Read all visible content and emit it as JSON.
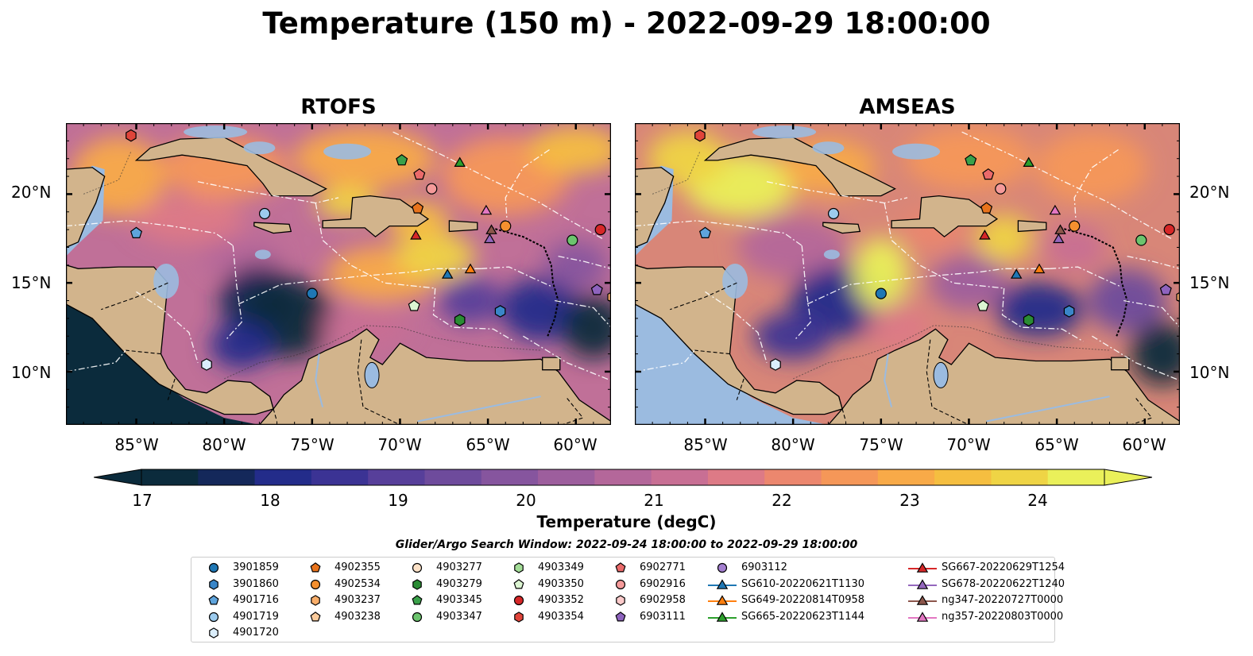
{
  "title": "Temperature (150 m) - 2022-09-29 18:00:00",
  "panels": [
    {
      "title": "RTOFS"
    },
    {
      "title": "AMSEAS"
    }
  ],
  "lat_labels": [
    "20°N",
    "15°N",
    "10°N"
  ],
  "lon_labels": [
    "85°W",
    "80°W",
    "75°W",
    "70°W",
    "65°W",
    "60°W"
  ],
  "colorbar": {
    "label": "Temperature (degC)",
    "ticks": [
      "17",
      "18",
      "19",
      "20",
      "21",
      "22",
      "23",
      "24"
    ],
    "min": 16.5,
    "max": 25.0,
    "colors": [
      "#0b2b3c",
      "#14285a",
      "#232c8a",
      "#3b3394",
      "#573f9a",
      "#6e4b9c",
      "#86559e",
      "#9d5e9d",
      "#b4679a",
      "#c86f94",
      "#dd7a86",
      "#ec876e",
      "#f59758",
      "#f8aa48",
      "#f5be40",
      "#efd445",
      "#eaf05a"
    ],
    "extend_low_color": "#0b2b3c",
    "extend_high_color": "#eaf05a"
  },
  "search_window": "Glider/Argo Search Window: 2022-09-24 18:00:00 to 2022-09-29 18:00:00",
  "colors": {
    "land": "#d2b48c",
    "shallow_water": "#9bbbe0"
  },
  "legend": {
    "columns": [
      [
        {
          "label": "3901859",
          "marker": "circle",
          "color": "#1f77b4"
        },
        {
          "label": "3901860",
          "marker": "hexagon",
          "color": "#3a86c8"
        },
        {
          "label": "4901716",
          "marker": "pentagon",
          "color": "#5ea4dc"
        },
        {
          "label": "4901719",
          "marker": "circle",
          "color": "#9ccbee"
        },
        {
          "label": "4901720",
          "marker": "hexagon",
          "color": "#dbeefb"
        }
      ],
      [
        {
          "label": "4902355",
          "marker": "pentagon",
          "color": "#e8731c"
        },
        {
          "label": "4902534",
          "marker": "circle",
          "color": "#f5902f"
        },
        {
          "label": "4903237",
          "marker": "hexagon",
          "color": "#f9ae6a"
        },
        {
          "label": "4903238",
          "marker": "pentagon",
          "color": "#fbcb9c"
        }
      ],
      [
        {
          "label": "4903277",
          "marker": "circle",
          "color": "#fde2c8"
        },
        {
          "label": "4903279",
          "marker": "hexagon",
          "color": "#2a8c34"
        },
        {
          "label": "4903345",
          "marker": "pentagon",
          "color": "#3aa14a"
        },
        {
          "label": "4903347",
          "marker": "circle",
          "color": "#6cc46e"
        }
      ],
      [
        {
          "label": "4903349",
          "marker": "hexagon",
          "color": "#a3dd97"
        },
        {
          "label": "4903350",
          "marker": "pentagon",
          "color": "#dcf5d2"
        },
        {
          "label": "4903352",
          "marker": "circle",
          "color": "#d62728"
        },
        {
          "label": "4903354",
          "marker": "hexagon",
          "color": "#e0443a"
        }
      ],
      [
        {
          "label": "6902771",
          "marker": "pentagon",
          "color": "#ea6a6a"
        },
        {
          "label": "6902916",
          "marker": "circle",
          "color": "#f59a9a"
        },
        {
          "label": "6902958",
          "marker": "hexagon",
          "color": "#fbcaca"
        },
        {
          "label": "6903111",
          "marker": "pentagon",
          "color": "#8e63be"
        }
      ],
      [
        {
          "label": "6903112",
          "marker": "circle",
          "color": "#a47fd0"
        },
        {
          "label": "SG610-20220621T1130",
          "marker": "triangle-line",
          "color": "#1f77b4"
        },
        {
          "label": "SG649-20220814T0958",
          "marker": "triangle-line",
          "color": "#ff7f0e"
        },
        {
          "label": "SG665-20220623T1144",
          "marker": "triangle-line",
          "color": "#2ca02c"
        }
      ],
      [
        {
          "label": "SG667-20220629T1254",
          "marker": "triangle-line",
          "color": "#d62728"
        },
        {
          "label": "SG678-20220622T1240",
          "marker": "triangle-line",
          "color": "#9467bd"
        },
        {
          "label": "ng347-20220727T0000",
          "marker": "triangle-line",
          "color": "#8c564b"
        },
        {
          "label": "ng357-20220803T0000",
          "marker": "triangle-line",
          "color": "#e377c2"
        }
      ]
    ]
  },
  "map_extent": {
    "lon": [
      -89,
      -58
    ],
    "lat": [
      7,
      24
    ]
  },
  "points": [
    {
      "label": "3901859",
      "lon": -75.0,
      "lat": 14.4
    },
    {
      "label": "3901860",
      "lon": -64.3,
      "lat": 13.4
    },
    {
      "label": "4901716",
      "lon": -85.0,
      "lat": 17.8
    },
    {
      "label": "4901719",
      "lon": -77.7,
      "lat": 18.9
    },
    {
      "label": "4901720",
      "lon": -81.0,
      "lat": 10.4
    },
    {
      "label": "4902355",
      "lon": -69.0,
      "lat": 19.2
    },
    {
      "label": "4902534",
      "lon": -64.0,
      "lat": 18.2
    },
    {
      "label": "4903237",
      "lon": -57.9,
      "lat": 14.2
    },
    {
      "label": "4903279",
      "lon": -66.6,
      "lat": 12.9
    },
    {
      "label": "4903345",
      "lon": -69.9,
      "lat": 21.9
    },
    {
      "label": "4903347",
      "lon": -60.2,
      "lat": 17.4
    },
    {
      "label": "4903350",
      "lon": -69.2,
      "lat": 13.7
    },
    {
      "label": "4903352",
      "lon": -58.6,
      "lat": 18.0
    },
    {
      "label": "4903354",
      "lon": -85.3,
      "lat": 23.3
    },
    {
      "label": "6902771",
      "lon": -68.9,
      "lat": 21.1
    },
    {
      "label": "6902916",
      "lon": -68.2,
      "lat": 20.3
    },
    {
      "label": "6903111",
      "lon": -58.8,
      "lat": 14.6
    },
    {
      "label": "SG610-20220621T1130",
      "lon": -67.3,
      "lat": 15.5
    },
    {
      "label": "SG649-20220814T0958",
      "lon": -66.0,
      "lat": 15.8
    },
    {
      "label": "SG665-20220623T1144",
      "lon": -66.6,
      "lat": 21.8
    },
    {
      "label": "SG667-20220629T1254",
      "lon": -69.1,
      "lat": 17.7
    },
    {
      "label": "SG678-20220622T1240",
      "lon": -64.9,
      "lat": 17.5
    },
    {
      "label": "ng347-20220727T0000",
      "lon": -64.8,
      "lat": 18.0
    },
    {
      "label": "ng357-20220803T0000",
      "lon": -65.1,
      "lat": 19.1
    }
  ]
}
